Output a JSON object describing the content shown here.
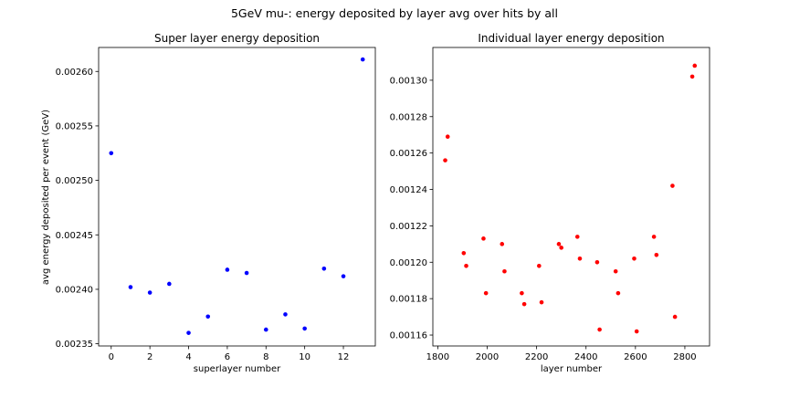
{
  "suptitle": "5GeV mu-: energy deposited by layer avg over hits by all",
  "colors": {
    "left_points": "#0000ff",
    "right_points": "#ff0000",
    "axis": "#000000"
  },
  "chart_data": [
    {
      "type": "scatter",
      "title": "Super layer energy deposition",
      "xlabel": "superlayer number",
      "ylabel": "avg energy deposited per event (GeV)",
      "xlim": [
        -0.65,
        13.65
      ],
      "ylim": [
        0.002348,
        0.002622
      ],
      "xticks": [
        0,
        2,
        4,
        6,
        8,
        10,
        12
      ],
      "yticks": [
        0.00235,
        0.0024,
        0.00245,
        0.0025,
        0.00255,
        0.0026
      ],
      "ytick_labels": [
        "0.00235",
        "0.00240",
        "0.00245",
        "0.00250",
        "0.00255",
        "0.00260"
      ],
      "grid": false,
      "color": "#0000ff",
      "x": [
        0,
        1,
        2,
        3,
        4,
        5,
        6,
        7,
        8,
        9,
        10,
        11,
        12,
        13
      ],
      "y": [
        0.002525,
        0.002402,
        0.002397,
        0.002405,
        0.00236,
        0.002375,
        0.002418,
        0.002415,
        0.002363,
        0.002377,
        0.002364,
        0.002419,
        0.002412,
        0.002611
      ]
    },
    {
      "type": "scatter",
      "title": "Individual layer energy deposition",
      "xlabel": "layer number",
      "ylabel": "",
      "xlim": [
        1780,
        2900
      ],
      "ylim": [
        0.001154,
        0.001318
      ],
      "xticks": [
        1800,
        2000,
        2200,
        2400,
        2600,
        2800
      ],
      "yticks": [
        0.00116,
        0.00118,
        0.0012,
        0.00122,
        0.00124,
        0.00126,
        0.00128,
        0.0013
      ],
      "ytick_labels": [
        "0.00116",
        "0.00118",
        "0.00120",
        "0.00122",
        "0.00124",
        "0.00126",
        "0.00128",
        "0.00130"
      ],
      "grid": false,
      "color": "#ff0000",
      "x": [
        1830,
        1840,
        1905,
        1915,
        1985,
        1995,
        2060,
        2070,
        2140,
        2150,
        2210,
        2220,
        2290,
        2300,
        2365,
        2375,
        2445,
        2455,
        2520,
        2530,
        2595,
        2605,
        2675,
        2685,
        2750,
        2760,
        2830,
        2840
      ],
      "y": [
        0.001256,
        0.001269,
        0.001205,
        0.001198,
        0.001213,
        0.001183,
        0.00121,
        0.001195,
        0.001183,
        0.001177,
        0.001198,
        0.001178,
        0.00121,
        0.001208,
        0.001214,
        0.001202,
        0.0012,
        0.001163,
        0.001195,
        0.001183,
        0.001202,
        0.001162,
        0.001214,
        0.001204,
        0.001242,
        0.00117,
        0.001302,
        0.001308
      ]
    }
  ]
}
